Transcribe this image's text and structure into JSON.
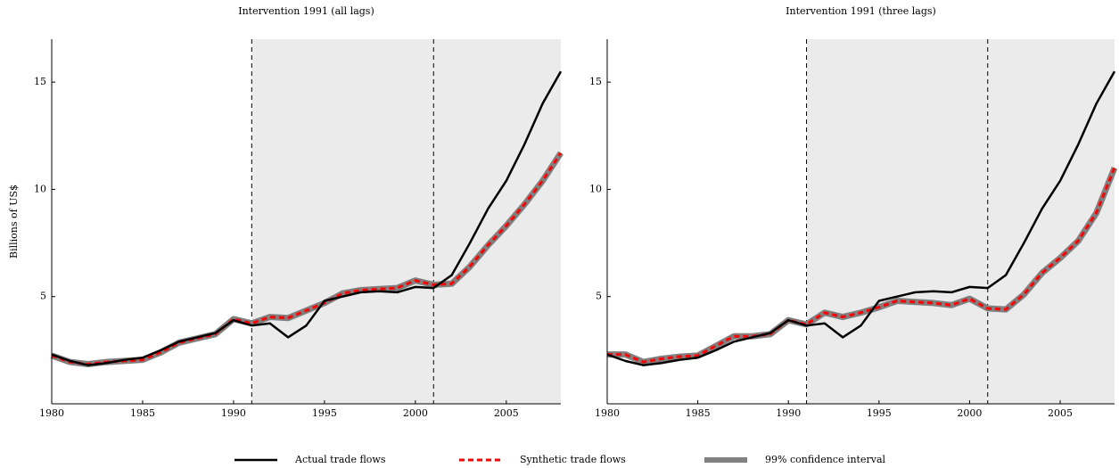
{
  "chart_data": [
    {
      "type": "line",
      "title": "Intervention 1991 (all lags)",
      "ylabel": "Billions of US$",
      "x": [
        1980,
        1981,
        1982,
        1983,
        1984,
        1985,
        1986,
        1987,
        1988,
        1989,
        1990,
        1991,
        1992,
        1993,
        1994,
        1995,
        1996,
        1997,
        1998,
        1999,
        2000,
        2001,
        2002,
        2003,
        2004,
        2005,
        2006,
        2007,
        2008
      ],
      "xlim": [
        1980,
        2008
      ],
      "xticks": [
        1980,
        1985,
        1990,
        1995,
        2000,
        2005
      ],
      "ylim": [
        0,
        17
      ],
      "yticks": [
        5,
        10,
        15
      ],
      "vlines": [
        1991,
        2001
      ],
      "shaded_region": [
        1991,
        2008
      ],
      "series": [
        {
          "name": "99% confidence interval",
          "color": "#808080",
          "style": "band",
          "values": [
            2.25,
            1.95,
            1.85,
            1.95,
            2.0,
            2.05,
            2.4,
            2.85,
            3.05,
            3.25,
            3.95,
            3.75,
            4.05,
            4.0,
            4.35,
            4.7,
            5.15,
            5.3,
            5.35,
            5.4,
            5.75,
            5.55,
            5.6,
            6.4,
            7.4,
            8.3,
            9.3,
            10.4,
            11.7
          ]
        },
        {
          "name": "Synthetic trade flows",
          "color": "#ff0000",
          "style": "dashed",
          "values": [
            2.25,
            1.95,
            1.85,
            1.95,
            2.0,
            2.05,
            2.4,
            2.85,
            3.05,
            3.25,
            3.95,
            3.75,
            4.05,
            4.0,
            4.35,
            4.7,
            5.15,
            5.3,
            5.35,
            5.4,
            5.75,
            5.55,
            5.6,
            6.4,
            7.4,
            8.3,
            9.3,
            10.4,
            11.7
          ]
        },
        {
          "name": "Actual trade flows",
          "color": "#000000",
          "style": "solid",
          "values": [
            2.3,
            2.0,
            1.8,
            1.9,
            2.05,
            2.15,
            2.5,
            2.9,
            3.1,
            3.3,
            3.9,
            3.65,
            3.75,
            3.1,
            3.65,
            4.8,
            5.0,
            5.2,
            5.25,
            5.2,
            5.45,
            5.4,
            6.0,
            7.5,
            9.1,
            10.4,
            12.1,
            14.0,
            15.5
          ]
        }
      ]
    },
    {
      "type": "line",
      "title": "Intervention 1991 (three lags)",
      "x": [
        1980,
        1981,
        1982,
        1983,
        1984,
        1985,
        1986,
        1987,
        1988,
        1989,
        1990,
        1991,
        1992,
        1993,
        1994,
        1995,
        1996,
        1997,
        1998,
        1999,
        2000,
        2001,
        2002,
        2003,
        2004,
        2005,
        2006,
        2007,
        2008
      ],
      "xlim": [
        1980,
        2008
      ],
      "xticks": [
        1980,
        1985,
        1990,
        1995,
        2000,
        2005
      ],
      "ylim": [
        0,
        17
      ],
      "yticks": [
        5,
        10,
        15
      ],
      "vlines": [
        1991,
        2001
      ],
      "shaded_region": [
        1991,
        2008
      ],
      "series": [
        {
          "color": "#808080",
          "style": "band",
          "values": [
            2.3,
            2.3,
            1.95,
            2.1,
            2.2,
            2.25,
            2.7,
            3.15,
            3.15,
            3.25,
            3.9,
            3.7,
            4.25,
            4.05,
            4.25,
            4.5,
            4.8,
            4.75,
            4.7,
            4.6,
            4.9,
            4.45,
            4.4,
            5.1,
            6.1,
            6.8,
            7.6,
            8.9,
            11.0
          ]
        },
        {
          "color": "#ff0000",
          "style": "dashed",
          "values": [
            2.3,
            2.3,
            1.95,
            2.1,
            2.2,
            2.25,
            2.7,
            3.15,
            3.15,
            3.25,
            3.9,
            3.7,
            4.25,
            4.05,
            4.25,
            4.5,
            4.8,
            4.75,
            4.7,
            4.6,
            4.9,
            4.45,
            4.4,
            5.1,
            6.1,
            6.8,
            7.6,
            8.9,
            11.0
          ]
        },
        {
          "color": "#000000",
          "style": "solid",
          "values": [
            2.3,
            2.0,
            1.8,
            1.9,
            2.05,
            2.15,
            2.5,
            2.9,
            3.1,
            3.3,
            3.9,
            3.65,
            3.75,
            3.1,
            3.65,
            4.8,
            5.0,
            5.2,
            5.25,
            5.2,
            5.45,
            5.4,
            6.0,
            7.5,
            9.1,
            10.4,
            12.1,
            14.0,
            15.5
          ]
        }
      ]
    }
  ]
}
